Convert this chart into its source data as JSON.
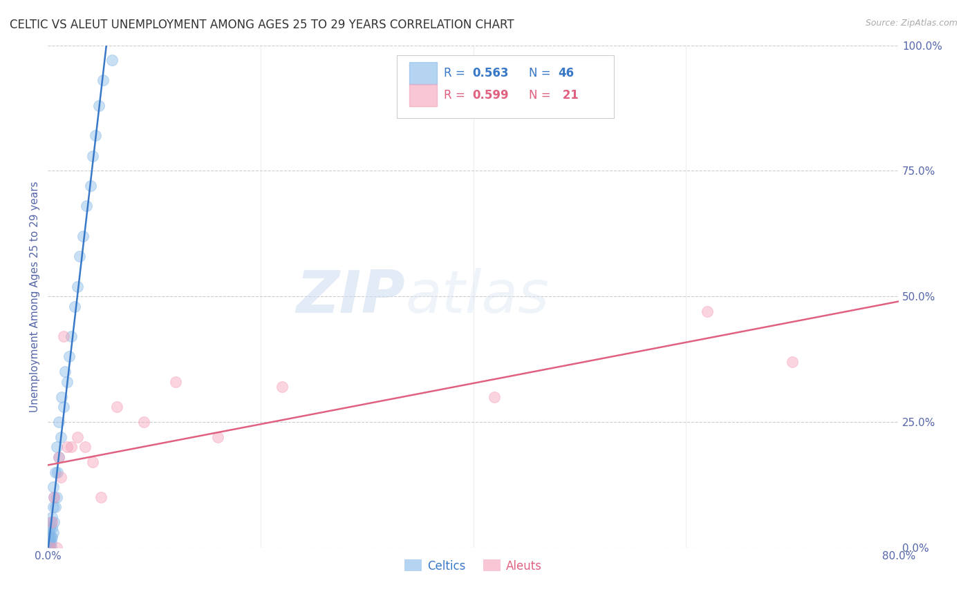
{
  "title": "CELTIC VS ALEUT UNEMPLOYMENT AMONG AGES 25 TO 29 YEARS CORRELATION CHART",
  "source": "Source: ZipAtlas.com",
  "ylabel": "Unemployment Among Ages 25 to 29 years",
  "xmin": 0.0,
  "xmax": 0.8,
  "ymin": 0.0,
  "ymax": 1.0,
  "xtick_positions": [
    0.0,
    0.8
  ],
  "xtick_labels": [
    "0.0%",
    "80.0%"
  ],
  "yticks_right": [
    0.0,
    0.25,
    0.5,
    0.75,
    1.0
  ],
  "ytick_labels_right": [
    "0.0%",
    "25.0%",
    "50.0%",
    "75.0%",
    "100.0%"
  ],
  "legend_r_celtic": "0.563",
  "legend_n_celtic": "46",
  "legend_r_aleut": "0.599",
  "legend_n_aleut": "21",
  "celtic_color": "#85b8e8",
  "aleut_color": "#f4a0b8",
  "celtic_line_color": "#3878c8",
  "aleut_line_color": "#e06080",
  "watermark_zip": "ZIP",
  "watermark_atlas": "atlas",
  "background_color": "#ffffff",
  "grid_color": "#cccccc",
  "title_color": "#333333",
  "axis_label_color": "#5566aa",
  "tick_color": "#5566aa",
  "marker_size": 130,
  "marker_alpha": 0.45,
  "celtic_x": [
    0.001,
    0.001,
    0.001,
    0.001,
    0.001,
    0.002,
    0.002,
    0.002,
    0.002,
    0.003,
    0.003,
    0.003,
    0.003,
    0.004,
    0.004,
    0.004,
    0.005,
    0.005,
    0.005,
    0.006,
    0.006,
    0.007,
    0.007,
    0.008,
    0.008,
    0.009,
    0.01,
    0.01,
    0.012,
    0.013,
    0.015,
    0.016,
    0.018,
    0.02,
    0.022,
    0.025,
    0.028,
    0.03,
    0.033,
    0.036,
    0.04,
    0.042,
    0.045,
    0.048,
    0.052,
    0.06
  ],
  "celtic_y": [
    0.0,
    0.0,
    0.01,
    0.02,
    0.03,
    0.0,
    0.01,
    0.02,
    0.04,
    0.0,
    0.01,
    0.02,
    0.05,
    0.02,
    0.04,
    0.06,
    0.03,
    0.08,
    0.12,
    0.05,
    0.1,
    0.08,
    0.15,
    0.1,
    0.2,
    0.15,
    0.18,
    0.25,
    0.22,
    0.3,
    0.28,
    0.35,
    0.33,
    0.38,
    0.42,
    0.48,
    0.52,
    0.58,
    0.62,
    0.68,
    0.72,
    0.78,
    0.82,
    0.88,
    0.93,
    0.97
  ],
  "aleut_x": [
    0.002,
    0.004,
    0.006,
    0.008,
    0.01,
    0.012,
    0.015,
    0.018,
    0.022,
    0.028,
    0.035,
    0.042,
    0.05,
    0.065,
    0.09,
    0.12,
    0.16,
    0.22,
    0.42,
    0.62,
    0.7
  ],
  "aleut_y": [
    0.0,
    0.05,
    0.1,
    0.0,
    0.18,
    0.14,
    0.42,
    0.2,
    0.2,
    0.22,
    0.2,
    0.17,
    0.1,
    0.28,
    0.25,
    0.33,
    0.22,
    0.32,
    0.3,
    0.47,
    0.37
  ]
}
